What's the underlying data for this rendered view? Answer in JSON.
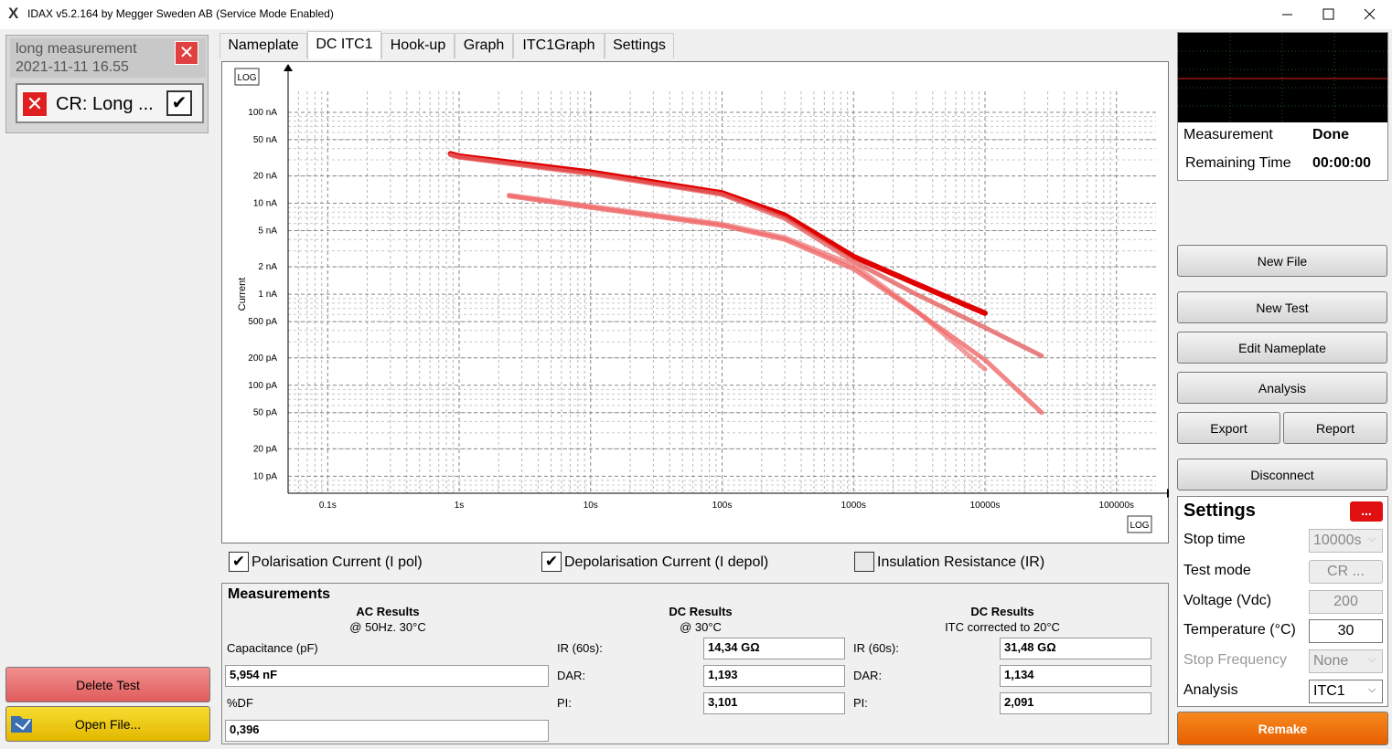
{
  "window": {
    "title": "IDAX v5.2.164 by Megger Sweden AB (Service Mode Enabled)"
  },
  "sidebar": {
    "file_name": "long measurement",
    "file_date": "2021-11-11 16.55",
    "test_label": "CR: Long ...",
    "delete_button": "Delete Test",
    "open_button": "Open File..."
  },
  "tabs": [
    "Nameplate",
    "DC ITC1",
    "Hook-up",
    "Graph",
    "ITC1Graph",
    "Settings"
  ],
  "active_tab": 1,
  "chart_data": {
    "type": "line",
    "ylabel": "Current",
    "x_scale_label": "LOG",
    "y_scale_label": "LOG",
    "xlog": true,
    "ylog": true,
    "grid": true,
    "xlim": [
      0.05,
      200000
    ],
    "xticks": [
      {
        "value": 0.1,
        "label": "0.1s"
      },
      {
        "value": 1,
        "label": "1s"
      },
      {
        "value": 10,
        "label": "10s"
      },
      {
        "value": 100,
        "label": "100s"
      },
      {
        "value": 1000,
        "label": "1000s"
      },
      {
        "value": 10000,
        "label": "10000s"
      },
      {
        "value": 100000,
        "label": "100000s"
      }
    ],
    "ylim": [
      6.5e-12,
      1.7e-07
    ],
    "yticks": [
      {
        "value": 1e-07,
        "label": "100 nA"
      },
      {
        "value": 5e-08,
        "label": "50 nA"
      },
      {
        "value": 2e-08,
        "label": "20 nA"
      },
      {
        "value": 1e-08,
        "label": "10 nA"
      },
      {
        "value": 5e-09,
        "label": "5 nA"
      },
      {
        "value": 2e-09,
        "label": "2 nA"
      },
      {
        "value": 1e-09,
        "label": "1 nA"
      },
      {
        "value": 5e-10,
        "label": "500 pA"
      },
      {
        "value": 2e-10,
        "label": "200 pA"
      },
      {
        "value": 1e-10,
        "label": "100 pA"
      },
      {
        "value": 5e-11,
        "label": "50 pA"
      },
      {
        "value": 2e-11,
        "label": "20 pA"
      },
      {
        "value": 1e-11,
        "label": "10 pA"
      }
    ],
    "series": [
      {
        "color": "#e00000",
        "x": [
          0.86,
          1,
          10,
          100,
          300,
          1000,
          3000,
          10000
        ],
        "values": [
          3.5e-08,
          3.3e-08,
          2.2e-08,
          1.3e-08,
          7.4e-09,
          2.6e-09,
          1.3e-09,
          6.2e-10
        ]
      },
      {
        "color": "#e46060",
        "x": [
          0.86,
          1,
          10,
          100,
          300,
          1000,
          3000,
          10000,
          27000
        ],
        "values": [
          3.4e-08,
          3.2e-08,
          2.1e-08,
          1.25e-08,
          6.8e-09,
          2.3e-09,
          1e-09,
          4.3e-10,
          2.1e-10
        ]
      },
      {
        "color": "#f08080",
        "x": [
          2.4,
          10,
          100,
          300,
          1000,
          3000,
          10000
        ],
        "values": [
          1.23e-08,
          9.3e-09,
          5.9e-09,
          4.2e-09,
          2.1e-09,
          6.6e-10,
          1.5e-10
        ]
      },
      {
        "color": "#f06868",
        "x": [
          2.4,
          10,
          100,
          300,
          1000,
          3000,
          10000,
          27000
        ],
        "values": [
          1.2e-08,
          9e-09,
          5.7e-09,
          4e-09,
          1.9e-09,
          6.5e-10,
          1.9e-10,
          5e-11
        ]
      }
    ]
  },
  "checkboxes": [
    {
      "label": "Polarisation Current (I pol)",
      "checked": true
    },
    {
      "label": "Depolarisation Current (I depol)",
      "checked": true
    },
    {
      "label": "Insulation Resistance (IR)",
      "checked": false
    }
  ],
  "measurements": {
    "title": "Measurements",
    "groups": [
      {
        "heading": "AC Results",
        "sub": "@ 50Hz. 30°C",
        "fields": [
          {
            "label": "Capacitance (pF)",
            "value": "5,954 nF"
          },
          {
            "label": "%DF",
            "value": "0,396"
          }
        ]
      },
      {
        "heading": "DC Results",
        "sub": "@ 30°C",
        "fields": [
          {
            "label": "IR (60s):",
            "value": "14,34 GΩ"
          },
          {
            "label": "DAR:",
            "value": "1,193"
          },
          {
            "label": "PI:",
            "value": "3,101"
          }
        ]
      },
      {
        "heading": "DC Results",
        "sub": "ITC corrected to 20°C",
        "fields": [
          {
            "label": "IR (60s):",
            "value": "31,48 GΩ"
          },
          {
            "label": "DAR:",
            "value": "1,134"
          },
          {
            "label": "PI:",
            "value": "2,091"
          }
        ]
      }
    ]
  },
  "status": [
    {
      "label": "Measurement",
      "value": "Done"
    },
    {
      "label": "Remaining Time",
      "value": "00:00:00"
    }
  ],
  "actions": [
    "New File",
    "New Test",
    "Edit Nameplate",
    "Analysis",
    "Export",
    "Report",
    "Disconnect"
  ],
  "settings": {
    "title": "Settings",
    "menu": "...",
    "rows": [
      {
        "label": "Stop time",
        "value": "10000s",
        "enabled": false,
        "control": "dropdown"
      },
      {
        "label": "Test mode",
        "value": "CR ...",
        "enabled": false,
        "control": "button"
      },
      {
        "label": "Voltage (Vdc)",
        "value": "200",
        "enabled": false,
        "control": "input"
      },
      {
        "label": "Temperature (°C)",
        "value": "30",
        "enabled": true,
        "control": "input"
      },
      {
        "label": "Stop Frequency",
        "value": "None",
        "enabled": false,
        "control": "dropdown"
      },
      {
        "label": "Analysis",
        "value": "ITC1",
        "enabled": true,
        "control": "dropdown"
      }
    ]
  },
  "remake": "Remake"
}
